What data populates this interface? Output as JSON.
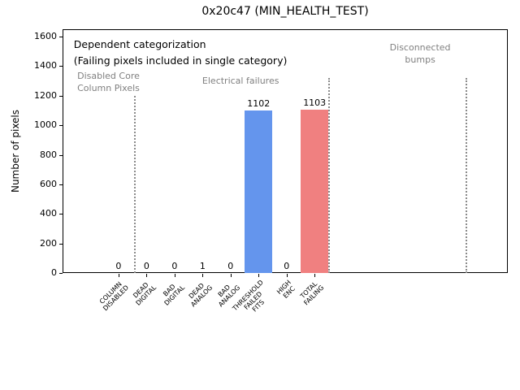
{
  "chart_data": {
    "type": "bar",
    "title": "0x20c47 (MIN_HEALTH_TEST)",
    "ylabel": "Number of pixels",
    "xlabel": "",
    "categories": [
      "COLUMN\nDISABLED",
      "DEAD\nDIGITAL",
      "BAD\nDIGITAL",
      "DEAD\nANALOG",
      "BAD\nANALOG",
      "THRESHOLD\nFAILED\nFITS",
      "HIGH\nENC",
      "TOTAL\nFAILING"
    ],
    "values": [
      0,
      0,
      0,
      1,
      0,
      1102,
      0,
      1103
    ],
    "bar_colors": [
      "#6495ed",
      "#6495ed",
      "#6495ed",
      "#6495ed",
      "#6495ed",
      "#6495ed",
      "#6495ed",
      "#f08080"
    ],
    "ylim": [
      0,
      1650
    ],
    "yticks": [
      0,
      200,
      400,
      600,
      800,
      1000,
      1200,
      1400,
      1600
    ],
    "xlim": [
      -2,
      13.9
    ],
    "grid": false,
    "legend": null,
    "separators": [
      {
        "x": 0.54,
        "ymax": 1200
      },
      {
        "x": 7.5,
        "ymax": 1320
      },
      {
        "x": 12.4,
        "ymax": 1320
      }
    ],
    "annotations": [
      {
        "text": "Dependent categorization\n(Failing pixels included in single category)",
        "x": -1.6,
        "y": 1600,
        "ha": "left",
        "color": "#000000",
        "style": "primary"
      },
      {
        "text": "Disabled Core\nColumn Pixels",
        "x": -0.36,
        "y": 1370,
        "ha": "center",
        "color": "#808080",
        "style": "secondary"
      },
      {
        "text": "Electrical failures",
        "x": 4.36,
        "y": 1335,
        "ha": "center",
        "color": "#808080",
        "style": "secondary"
      },
      {
        "text": "Disconnected\nbumps",
        "x": 10.77,
        "y": 1560,
        "ha": "center",
        "color": "#808080",
        "style": "secondary"
      }
    ]
  }
}
